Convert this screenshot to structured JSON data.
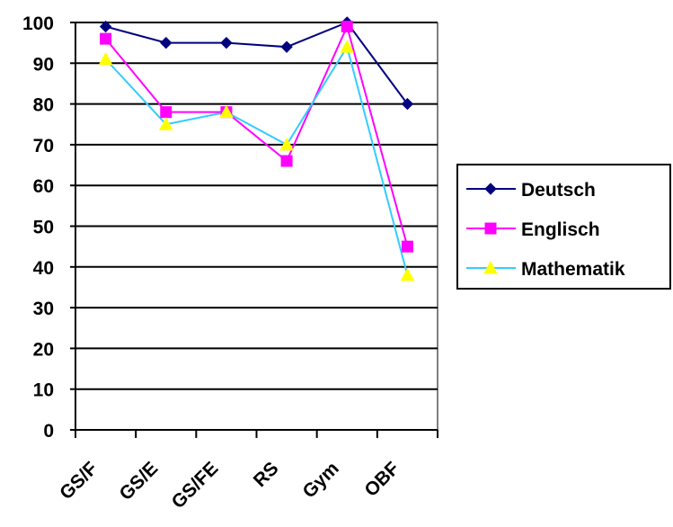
{
  "chart_data": {
    "type": "line",
    "title": "",
    "xlabel": "",
    "ylabel": "",
    "categories": [
      "GS/F",
      "GS/E",
      "GS/FE",
      "RS",
      "Gym",
      "OBF"
    ],
    "ylim": [
      0,
      100
    ],
    "y_ticks": [
      "0",
      "10",
      "20",
      "30",
      "40",
      "50",
      "60",
      "70",
      "80",
      "90",
      "100"
    ],
    "grid": "horizontal",
    "legend_position": "right",
    "series": [
      {
        "name": "Deutsch",
        "values": [
          99,
          95,
          95,
          94,
          100,
          80
        ],
        "color": "#000080",
        "marker": "diamond"
      },
      {
        "name": "Englisch",
        "values": [
          96,
          78,
          78,
          66,
          99,
          45
        ],
        "color": "#ff00ff",
        "marker": "square"
      },
      {
        "name": "Mathematik",
        "values": [
          91,
          75,
          78,
          70,
          94,
          38
        ],
        "color": "#33ccff",
        "marker": "triangle",
        "marker_fill": "#ffff00"
      }
    ]
  }
}
